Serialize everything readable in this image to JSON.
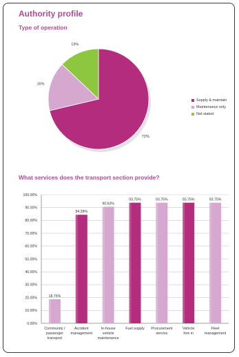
{
  "page": {
    "title": "Authority profile",
    "section1_title": "Type of operation",
    "section2_title": "What services does the transport section provide?"
  },
  "colors": {
    "title": "#b04b93",
    "magenta": "#b32c7d",
    "light_purple": "#d6a8d0",
    "green": "#8dc63f"
  },
  "chart_data": [
    {
      "type": "pie",
      "title": "",
      "slices": [
        {
          "label": "Supply & maintain",
          "value": 72,
          "value_label": "72%",
          "color": "#b32c7d"
        },
        {
          "label": "Maintenance only",
          "value": 16,
          "value_label": "16%",
          "color": "#d6a8d0"
        },
        {
          "label": "Not stated",
          "value": 13,
          "value_label": "13%",
          "color": "#8dc63f"
        }
      ],
      "legend_position": "right"
    },
    {
      "type": "bar",
      "title": "",
      "categories": [
        "Community / passenger transport",
        "Accident management",
        "In-house vehicle maintenance",
        "Fuel supply",
        "Procurement service",
        "Vehicle hire in",
        "Fleet management"
      ],
      "category_lines": [
        [
          "Community /",
          "passenger",
          "transport"
        ],
        [
          "Accident",
          "management"
        ],
        [
          "In-house",
          "vehicle",
          "maintenance"
        ],
        [
          "Fuel supply"
        ],
        [
          "Procurement",
          "service"
        ],
        [
          "Vehicle",
          "hire in"
        ],
        [
          "Fleet",
          "management"
        ]
      ],
      "values": [
        18.75,
        84.38,
        90.63,
        93.75,
        93.75,
        93.75,
        93.75
      ],
      "value_labels": [
        "18.75%",
        "84.38%",
        "90.63%",
        "93.75%",
        "93.75%",
        "93.75%",
        "93.75%"
      ],
      "bar_colors": [
        "#d6a8d0",
        "#b32c7d",
        "#d6a8d0",
        "#b32c7d",
        "#d6a8d0",
        "#b32c7d",
        "#d6a8d0"
      ],
      "ylim": [
        0,
        100
      ],
      "yticks": [
        0,
        10,
        20,
        30,
        40,
        50,
        60,
        70,
        80,
        90,
        100
      ],
      "ytick_labels": [
        "0.00%",
        "10.00%",
        "20.00%",
        "30.00%",
        "40.00%",
        "50.00%",
        "60.00%",
        "70.00%",
        "80.00%",
        "90.00%",
        "100.00%"
      ],
      "grid": true,
      "xlabel": "",
      "ylabel": ""
    }
  ]
}
